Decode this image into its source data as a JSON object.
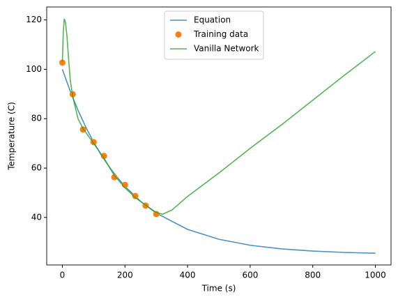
{
  "chart_data": {
    "type": "line",
    "x_label": "Time (s)",
    "y_label": "Temperature (C)",
    "xlim": [
      -50,
      1050
    ],
    "ylim": [
      20.75,
      125.25
    ],
    "xticks": [
      0,
      200,
      400,
      600,
      800,
      1000
    ],
    "yticks": [
      40,
      60,
      80,
      100,
      120
    ],
    "legend": "upper center",
    "series": [
      {
        "name": "Equation",
        "color": "#1f77b4",
        "mode": "line",
        "x": [
          0,
          25,
          50,
          75,
          100,
          125,
          150,
          175,
          200,
          250,
          300,
          400,
          500,
          600,
          700,
          800,
          900,
          1000
        ],
        "values": [
          100,
          91.19,
          83.41,
          76.55,
          70.49,
          65.14,
          60.43,
          56.31,
          52.59,
          46.49,
          41.73,
          35.15,
          31.16,
          28.73,
          27.26,
          26.37,
          25.83,
          25.51
        ]
      },
      {
        "name": "Training data",
        "color": "#ff7f0e",
        "mode": "markers",
        "x": [
          0,
          33,
          66,
          100,
          133,
          166,
          200,
          233,
          266,
          300
        ],
        "values": [
          102.7,
          89.9,
          75.6,
          70.5,
          64.9,
          56.3,
          53.2,
          48.7,
          44.8,
          41.4
        ]
      },
      {
        "name": "Vanilla Network",
        "color": "#2ca02c",
        "mode": "line",
        "x": [
          0,
          3,
          6,
          10,
          15,
          20,
          25,
          33,
          50,
          66,
          100,
          133,
          166,
          200,
          233,
          266,
          300,
          320,
          350,
          400,
          500,
          600,
          700,
          800,
          900,
          1000
        ],
        "values": [
          103,
          115,
          120.5,
          119,
          113,
          104,
          96,
          89,
          80,
          76,
          70,
          64,
          57,
          52,
          48,
          45,
          42,
          41.3,
          43,
          48.5,
          58,
          68,
          77.5,
          87.5,
          97.5,
          107.2
        ]
      }
    ]
  }
}
